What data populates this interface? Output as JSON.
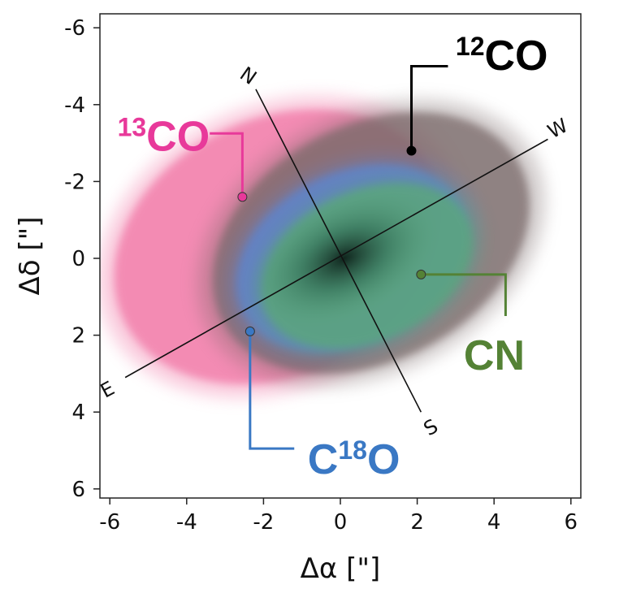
{
  "chart_data": {
    "type": "scatter",
    "xlabel": "Δα [\"]",
    "ylabel": "Δδ [\"]",
    "xlim": [
      -6.3,
      6.3
    ],
    "ylim": [
      6.3,
      -6.3
    ],
    "x_ticks": [
      -6,
      -4,
      -2,
      0,
      2,
      4,
      6
    ],
    "y_ticks": [
      -6,
      -4,
      -2,
      0,
      2,
      4,
      6
    ],
    "x_tick_labels": [
      "-6",
      "-4",
      "-2",
      "0",
      "2",
      "4",
      "6"
    ],
    "y_tick_labels": [
      "-6",
      "-4",
      "-2",
      "0",
      "2",
      "4",
      "6"
    ],
    "grid": false,
    "compass": {
      "labels": [
        "N",
        "S",
        "W",
        "E"
      ],
      "n_end": [
        -2.2,
        -4.4
      ],
      "s_end": [
        2.1,
        4.0
      ],
      "w_end": [
        5.4,
        -3.1
      ],
      "e_end": [
        -5.6,
        3.1
      ]
    },
    "emission": [
      {
        "name_main": "CO",
        "name_sup": "12",
        "color": "#000000",
        "fill": "#7a6a6a",
        "center": [
          0.8,
          -0.4
        ],
        "semi_major": 4.7,
        "semi_minor": 3.3,
        "angle_deg": -28,
        "marker": [
          1.85,
          -2.8
        ],
        "label_anchor": [
          3.1,
          -5.3
        ]
      },
      {
        "name_main": "CO",
        "name_sup": "13",
        "color": "#e8399a",
        "fill": "#f06a9e",
        "center": [
          -1.6,
          -0.3
        ],
        "semi_major": 4.8,
        "semi_minor": 3.6,
        "angle_deg": -25,
        "marker": [
          -2.55,
          -1.6
        ],
        "label_anchor": [
          -6.1,
          -3.1
        ]
      },
      {
        "name_main": "O",
        "name_sup": "18",
        "prefix": "C",
        "color": "#3a78c4",
        "fill": "#5a86d6",
        "center": [
          0.3,
          0.0
        ],
        "semi_major": 3.4,
        "semi_minor": 2.4,
        "angle_deg": -26,
        "marker": [
          -2.35,
          1.9
        ],
        "label_anchor": [
          -0.75,
          5.4
        ]
      },
      {
        "name_main": "CN",
        "name_sup": "",
        "color": "#548235",
        "fill": "#5aa878",
        "center": [
          0.7,
          0.2
        ],
        "semi_major": 3.1,
        "semi_minor": 2.1,
        "angle_deg": -25,
        "marker": [
          2.1,
          0.42
        ],
        "label_anchor": [
          3.6,
          2.3
        ]
      }
    ]
  }
}
